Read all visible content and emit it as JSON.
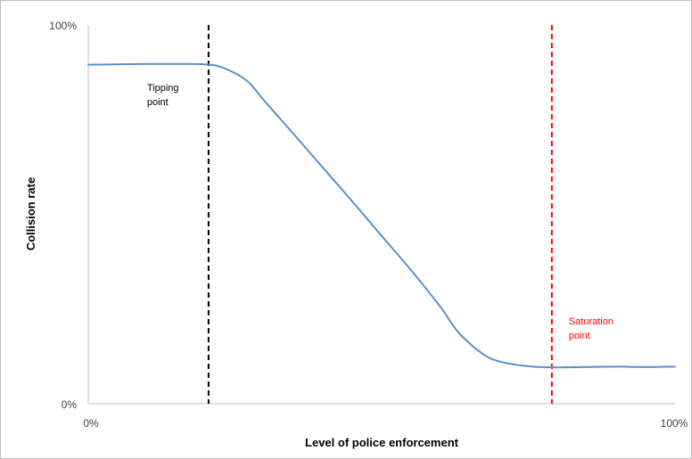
{
  "chart_data": {
    "type": "line",
    "title": "",
    "xlabel": "Level of police enforcement",
    "ylabel": "Collision rate",
    "x_tick_labels": [
      "0%",
      "100%"
    ],
    "y_tick_labels": [
      "0%",
      "100%"
    ],
    "xlim": [
      0,
      100
    ],
    "ylim": [
      0,
      100
    ],
    "grid": false,
    "legend": "none",
    "series": [
      {
        "color": "#5b8fcc",
        "x": [
          0,
          10,
          15,
          20,
          23,
          27,
          30,
          35,
          40,
          45,
          50,
          55,
          60,
          63,
          67,
          70,
          75,
          80,
          85,
          90,
          95,
          100
        ],
        "y": [
          89.5,
          89.7,
          89.7,
          89.6,
          88.7,
          85.3,
          80,
          71.2,
          62.3,
          53.4,
          44.3,
          35.3,
          25.6,
          19,
          13.4,
          11.2,
          9.9,
          9.6,
          9.7,
          9.8,
          9.7,
          9.8
        ]
      }
    ],
    "annotations": [
      {
        "lines": [
          "Tipping",
          "point"
        ],
        "x": 20.5,
        "color": "#000000",
        "line_style": "dashed"
      },
      {
        "lines": [
          "Saturation",
          "point"
        ],
        "x": 79,
        "color": "#ff0000",
        "line_style": "dashed"
      }
    ]
  }
}
